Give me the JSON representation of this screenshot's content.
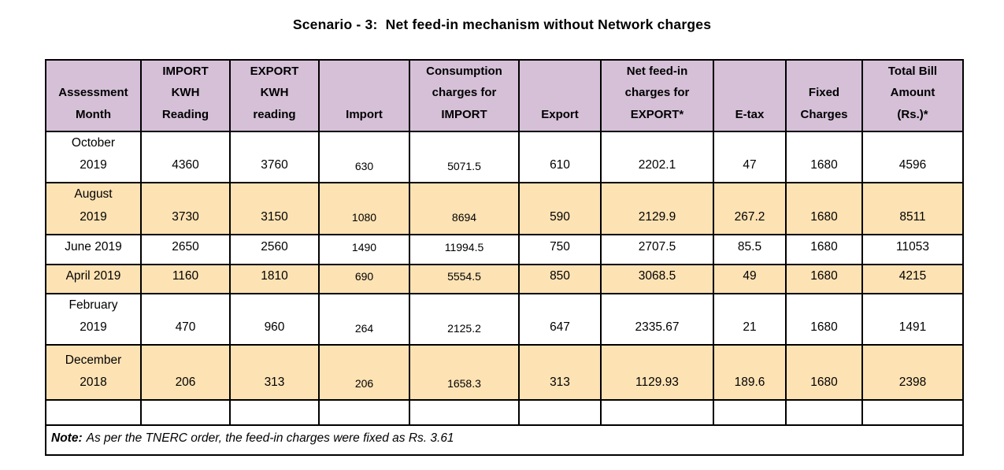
{
  "title": "Scenario - 3:  Net feed-in mechanism without Network charges",
  "table": {
    "headers": [
      "Assessment\nMonth",
      "IMPORT\nKWH\nReading",
      "EXPORT\nKWH\nreading",
      "Import",
      "Consumption\ncharges for\nIMPORT",
      "Export",
      "Net feed-in\ncharges for\nEXPORT*",
      "E-tax",
      "Fixed\nCharges",
      "Total Bill\nAmount\n(Rs.)*"
    ],
    "rows": [
      {
        "month": "October\n2019",
        "values": [
          "4360",
          "3760",
          "630",
          "5071.5",
          "610",
          "2202.1",
          "47",
          "1680",
          "4596"
        ]
      },
      {
        "month": "August\n2019",
        "values": [
          "3730",
          "3150",
          "1080",
          "8694",
          "590",
          "2129.9",
          "267.2",
          "1680",
          "8511"
        ]
      },
      {
        "month": "June 2019",
        "values": [
          "2650",
          "2560",
          "1490",
          "11994.5",
          "750",
          "2707.5",
          "85.5",
          "1680",
          "11053"
        ]
      },
      {
        "month": "April 2019",
        "values": [
          "1160",
          "1810",
          "690",
          "5554.5",
          "850",
          "3068.5",
          "49",
          "1680",
          "4215"
        ]
      },
      {
        "month": "February\n2019",
        "values": [
          "470",
          "960",
          "264",
          "2125.2",
          "647",
          "2335.67",
          "21",
          "1680",
          "1491"
        ]
      },
      {
        "month": "December\n2018",
        "values": [
          "206",
          "313",
          "206",
          "1658.3",
          "313",
          "1129.93",
          "189.6",
          "1680",
          "2398"
        ]
      }
    ]
  },
  "note": {
    "label": "Note:",
    "text": "As per the TNERC order, the feed-in charges were fixed as Rs. 3.61"
  },
  "colors": {
    "header_bg": "#D5C0D8",
    "shaded_row_bg": "#FDE2B4",
    "table_border": "#000000",
    "light_border": "#BFBFBF"
  }
}
